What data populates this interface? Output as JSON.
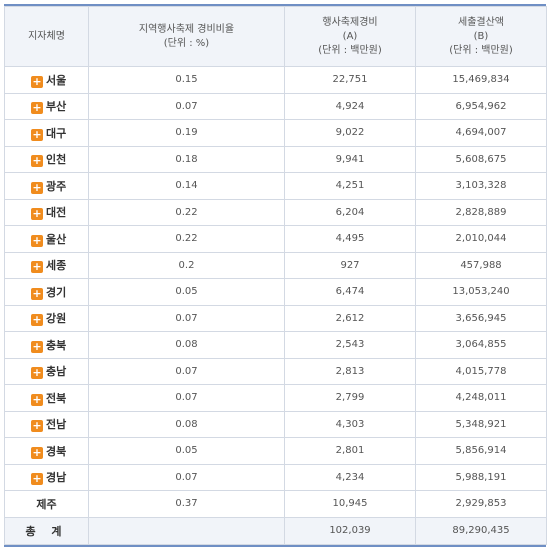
{
  "header": {
    "col1": "지자체명",
    "col2": [
      "지역행사축제 경비비율",
      "(단위 : %)"
    ],
    "col3": [
      "행사축제경비",
      "(A)",
      "(단위 : 백만원)"
    ],
    "col4": [
      "세출결산액",
      "(B)",
      "(단위 : 백만원)"
    ]
  },
  "rows": [
    {
      "name": "서울",
      "ratio": "0.15",
      "a": "22,751",
      "b": "15,469,834",
      "expandable": true
    },
    {
      "name": "부산",
      "ratio": "0.07",
      "a": "4,924",
      "b": "6,954,962",
      "expandable": true
    },
    {
      "name": "대구",
      "ratio": "0.19",
      "a": "9,022",
      "b": "4,694,007",
      "expandable": true
    },
    {
      "name": "인천",
      "ratio": "0.18",
      "a": "9,941",
      "b": "5,608,675",
      "expandable": true
    },
    {
      "name": "광주",
      "ratio": "0.14",
      "a": "4,251",
      "b": "3,103,328",
      "expandable": true
    },
    {
      "name": "대전",
      "ratio": "0.22",
      "a": "6,204",
      "b": "2,828,889",
      "expandable": true
    },
    {
      "name": "울산",
      "ratio": "0.22",
      "a": "4,495",
      "b": "2,010,044",
      "expandable": true
    },
    {
      "name": "세종",
      "ratio": "0.2",
      "a": "927",
      "b": "457,988",
      "expandable": true
    },
    {
      "name": "경기",
      "ratio": "0.05",
      "a": "6,474",
      "b": "13,053,240",
      "expandable": true
    },
    {
      "name": "강원",
      "ratio": "0.07",
      "a": "2,612",
      "b": "3,656,945",
      "expandable": true
    },
    {
      "name": "충북",
      "ratio": "0.08",
      "a": "2,543",
      "b": "3,064,855",
      "expandable": true
    },
    {
      "name": "충남",
      "ratio": "0.07",
      "a": "2,813",
      "b": "4,015,778",
      "expandable": true
    },
    {
      "name": "전북",
      "ratio": "0.07",
      "a": "2,799",
      "b": "4,248,011",
      "expandable": true
    },
    {
      "name": "전남",
      "ratio": "0.08",
      "a": "4,303",
      "b": "5,348,921",
      "expandable": true
    },
    {
      "name": "경북",
      "ratio": "0.05",
      "a": "2,801",
      "b": "5,856,914",
      "expandable": true
    },
    {
      "name": "경남",
      "ratio": "0.07",
      "a": "4,234",
      "b": "5,988,191",
      "expandable": true
    },
    {
      "name": "제주",
      "ratio": "0.37",
      "a": "10,945",
      "b": "2,929,853",
      "expandable": false
    }
  ],
  "total": {
    "name": "총 계",
    "ratio": "",
    "a": "102,039",
    "b": "89,290,435"
  },
  "icons": {
    "expand": "plus-icon"
  },
  "colors": {
    "expand_icon": "#f08c1e",
    "header_bg": "#f1f4f9",
    "border": "#d3d9e3",
    "accent_line": "#6f8fc4"
  }
}
